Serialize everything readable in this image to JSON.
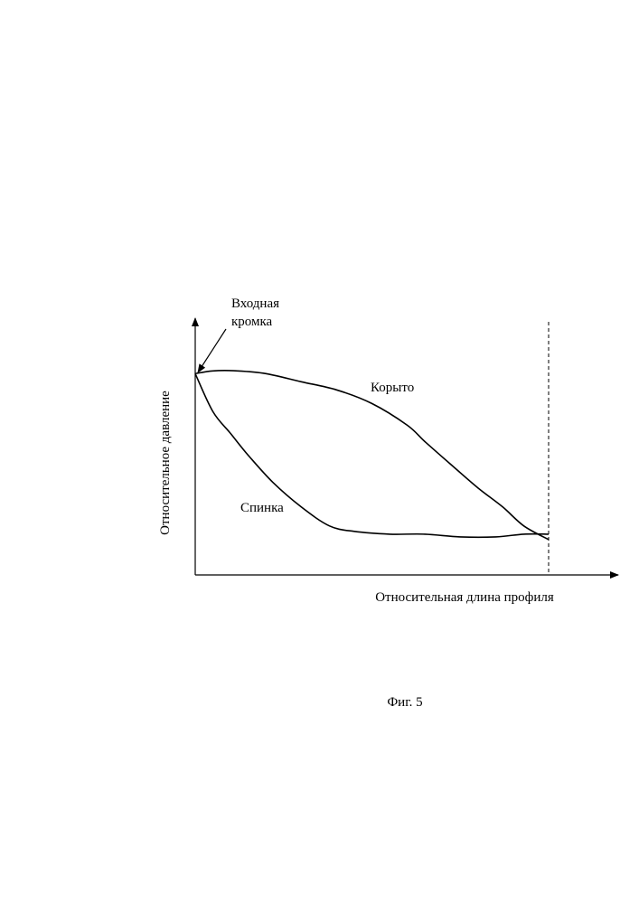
{
  "chart_data": {
    "type": "line",
    "ylabel": "Относительное давление",
    "xlabel": "Относительная длина профиля",
    "xlim": [
      0,
      1
    ],
    "ylim": [
      0,
      1
    ],
    "grid": false,
    "annotations": {
      "leading_edge_line1": "Входная",
      "leading_edge_line2": "кромка",
      "end_marker_x": 1
    },
    "series": [
      {
        "name": "Корыто",
        "x": [
          0,
          0.05,
          0.12,
          0.2,
          0.3,
          0.4,
          0.5,
          0.6,
          0.65,
          0.72,
          0.8,
          0.87,
          0.93,
          1.0
        ],
        "y": [
          0.74,
          0.75,
          0.75,
          0.74,
          0.71,
          0.68,
          0.63,
          0.55,
          0.49,
          0.41,
          0.32,
          0.25,
          0.18,
          0.13
        ]
      },
      {
        "name": "Спинка",
        "x": [
          0,
          0.05,
          0.1,
          0.15,
          0.22,
          0.3,
          0.38,
          0.45,
          0.55,
          0.65,
          0.75,
          0.85,
          0.93,
          1.0
        ],
        "y": [
          0.74,
          0.6,
          0.52,
          0.44,
          0.34,
          0.25,
          0.18,
          0.16,
          0.15,
          0.15,
          0.14,
          0.14,
          0.15,
          0.15
        ]
      }
    ]
  },
  "caption": "Фиг. 5"
}
